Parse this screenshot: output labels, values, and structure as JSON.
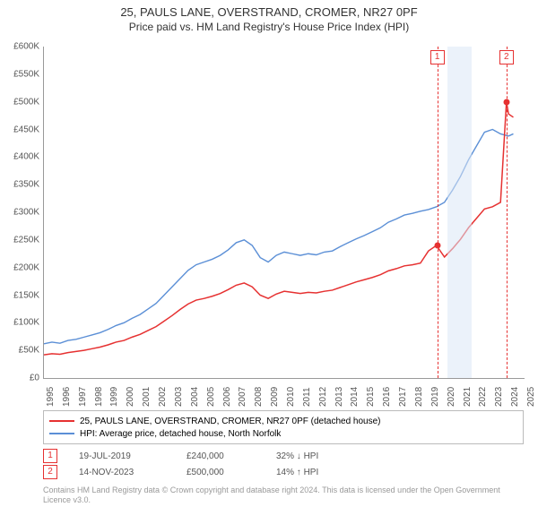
{
  "title": "25, PAULS LANE, OVERSTRAND, CROMER, NR27 0PF",
  "subtitle": "Price paid vs. HM Land Registry's House Price Index (HPI)",
  "chart": {
    "type": "line",
    "background_color": "#ffffff",
    "grid_color": "#eeeeee",
    "axis_color": "#999999",
    "x_range": [
      1995,
      2025
    ],
    "y_range": [
      0,
      600000
    ],
    "y_ticks": [
      0,
      50000,
      100000,
      150000,
      200000,
      250000,
      300000,
      350000,
      400000,
      450000,
      500000,
      550000,
      600000
    ],
    "y_tick_labels": [
      "£0",
      "£50K",
      "£100K",
      "£150K",
      "£200K",
      "£250K",
      "£300K",
      "£350K",
      "£400K",
      "£450K",
      "£500K",
      "£550K",
      "£600K"
    ],
    "x_ticks": [
      1995,
      1996,
      1997,
      1998,
      1999,
      2000,
      2001,
      2002,
      2003,
      2004,
      2005,
      2006,
      2007,
      2008,
      2009,
      2010,
      2011,
      2012,
      2013,
      2014,
      2015,
      2016,
      2017,
      2018,
      2019,
      2020,
      2021,
      2022,
      2023,
      2024,
      2025
    ],
    "highlight_band": {
      "from": 2020.2,
      "to": 2021.7,
      "color": "#dbe8f5"
    },
    "series": [
      {
        "name": "hpi",
        "label": "HPI: Average price, detached house, North Norfolk",
        "color": "#5b8fd6",
        "line_width": 1.4,
        "points": [
          [
            1995,
            62000
          ],
          [
            1995.5,
            65000
          ],
          [
            1996,
            63000
          ],
          [
            1996.5,
            68000
          ],
          [
            1997,
            70000
          ],
          [
            1997.5,
            74000
          ],
          [
            1998,
            78000
          ],
          [
            1998.5,
            82000
          ],
          [
            1999,
            88000
          ],
          [
            1999.5,
            95000
          ],
          [
            2000,
            100000
          ],
          [
            2000.5,
            108000
          ],
          [
            2001,
            115000
          ],
          [
            2001.5,
            125000
          ],
          [
            2002,
            135000
          ],
          [
            2002.5,
            150000
          ],
          [
            2003,
            165000
          ],
          [
            2003.5,
            180000
          ],
          [
            2004,
            195000
          ],
          [
            2004.5,
            205000
          ],
          [
            2005,
            210000
          ],
          [
            2005.5,
            215000
          ],
          [
            2006,
            222000
          ],
          [
            2006.5,
            232000
          ],
          [
            2007,
            245000
          ],
          [
            2007.5,
            250000
          ],
          [
            2008,
            240000
          ],
          [
            2008.5,
            218000
          ],
          [
            2009,
            210000
          ],
          [
            2009.5,
            222000
          ],
          [
            2010,
            228000
          ],
          [
            2010.5,
            225000
          ],
          [
            2011,
            222000
          ],
          [
            2011.5,
            225000
          ],
          [
            2012,
            223000
          ],
          [
            2012.5,
            228000
          ],
          [
            2013,
            230000
          ],
          [
            2013.5,
            238000
          ],
          [
            2014,
            245000
          ],
          [
            2014.5,
            252000
          ],
          [
            2015,
            258000
          ],
          [
            2015.5,
            265000
          ],
          [
            2016,
            272000
          ],
          [
            2016.5,
            282000
          ],
          [
            2017,
            288000
          ],
          [
            2017.5,
            295000
          ],
          [
            2018,
            298000
          ],
          [
            2018.5,
            302000
          ],
          [
            2019,
            305000
          ],
          [
            2019.5,
            310000
          ],
          [
            2020,
            318000
          ],
          [
            2020.5,
            340000
          ],
          [
            2021,
            365000
          ],
          [
            2021.5,
            395000
          ],
          [
            2022,
            420000
          ],
          [
            2022.5,
            445000
          ],
          [
            2023,
            450000
          ],
          [
            2023.5,
            442000
          ],
          [
            2024,
            438000
          ],
          [
            2024.3,
            442000
          ]
        ]
      },
      {
        "name": "price_paid",
        "label": "25, PAULS LANE, OVERSTRAND, CROMER, NR27 0PF (detached house)",
        "color": "#e63131",
        "line_width": 1.5,
        "points": [
          [
            1995,
            42000
          ],
          [
            1995.5,
            44000
          ],
          [
            1996,
            43000
          ],
          [
            1996.5,
            46000
          ],
          [
            1997,
            48000
          ],
          [
            1997.5,
            50000
          ],
          [
            1998,
            53000
          ],
          [
            1998.5,
            56000
          ],
          [
            1999,
            60000
          ],
          [
            1999.5,
            65000
          ],
          [
            2000,
            68000
          ],
          [
            2000.5,
            74000
          ],
          [
            2001,
            79000
          ],
          [
            2001.5,
            86000
          ],
          [
            2002,
            93000
          ],
          [
            2002.5,
            103000
          ],
          [
            2003,
            113000
          ],
          [
            2003.5,
            124000
          ],
          [
            2004,
            134000
          ],
          [
            2004.5,
            141000
          ],
          [
            2005,
            144000
          ],
          [
            2005.5,
            148000
          ],
          [
            2006,
            153000
          ],
          [
            2006.5,
            160000
          ],
          [
            2007,
            168000
          ],
          [
            2007.5,
            172000
          ],
          [
            2008,
            165000
          ],
          [
            2008.5,
            150000
          ],
          [
            2009,
            144000
          ],
          [
            2009.5,
            152000
          ],
          [
            2010,
            157000
          ],
          [
            2010.5,
            155000
          ],
          [
            2011,
            153000
          ],
          [
            2011.5,
            155000
          ],
          [
            2012,
            154000
          ],
          [
            2012.5,
            157000
          ],
          [
            2013,
            159000
          ],
          [
            2013.5,
            164000
          ],
          [
            2014,
            169000
          ],
          [
            2014.5,
            174000
          ],
          [
            2015,
            178000
          ],
          [
            2015.5,
            182000
          ],
          [
            2016,
            187000
          ],
          [
            2016.5,
            194000
          ],
          [
            2017,
            198000
          ],
          [
            2017.5,
            203000
          ],
          [
            2018,
            205000
          ],
          [
            2018.5,
            208000
          ],
          [
            2019,
            230000
          ],
          [
            2019.5,
            240000
          ],
          [
            2020,
            219000
          ],
          [
            2020.5,
            234000
          ],
          [
            2021,
            251000
          ],
          [
            2021.5,
            272000
          ],
          [
            2022,
            289000
          ],
          [
            2022.5,
            306000
          ],
          [
            2023,
            310000
          ],
          [
            2023.5,
            318000
          ],
          [
            2023.87,
            500000
          ],
          [
            2024,
            478000
          ],
          [
            2024.3,
            472000
          ]
        ]
      }
    ],
    "sale_markers": [
      {
        "idx": "1",
        "x": 2019.55,
        "y": 240000,
        "color": "#e63131"
      },
      {
        "idx": "2",
        "x": 2023.87,
        "y": 500000,
        "color": "#e63131"
      }
    ]
  },
  "legend": {
    "items": [
      {
        "color": "#e63131",
        "label": "25, PAULS LANE, OVERSTRAND, CROMER, NR27 0PF (detached house)"
      },
      {
        "color": "#5b8fd6",
        "label": "HPI: Average price, detached house, North Norfolk"
      }
    ]
  },
  "sales": [
    {
      "idx": "1",
      "color": "#e63131",
      "date": "19-JUL-2019",
      "price": "£240,000",
      "delta": "32% ↓ HPI"
    },
    {
      "idx": "2",
      "color": "#e63131",
      "date": "14-NOV-2023",
      "price": "£500,000",
      "delta": "14% ↑ HPI"
    }
  ],
  "attribution": "Contains HM Land Registry data © Crown copyright and database right 2024. This data is licensed under the Open Government Licence v3.0."
}
